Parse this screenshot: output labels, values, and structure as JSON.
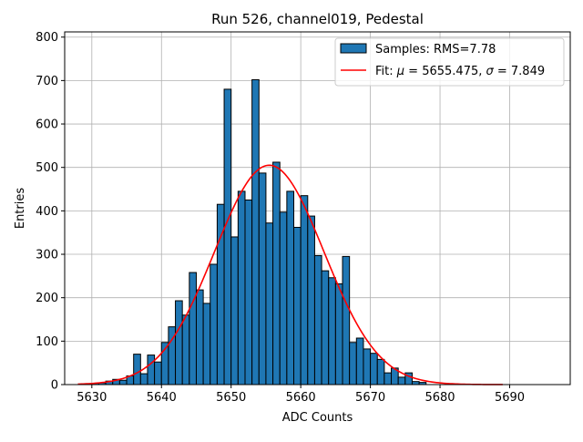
{
  "chart_data": {
    "type": "bar",
    "title": "Run 526, channel019, Pedestal",
    "xlabel": "ADC Counts",
    "ylabel": "Entries",
    "xlim": [
      5626.1,
      5698.7
    ],
    "ylim": [
      0,
      812
    ],
    "xticks": [
      5630,
      5640,
      5650,
      5660,
      5670,
      5680,
      5690
    ],
    "yticks": [
      0,
      100,
      200,
      300,
      400,
      500,
      600,
      700,
      800
    ],
    "grid": true,
    "legend_position": "top-right",
    "histogram": {
      "name": "Samples: RMS=7.78",
      "color": "#1f77b4",
      "bin_width": 1.0,
      "bin_edges_start": 5630,
      "values": [
        3,
        4,
        8,
        12,
        10,
        20,
        70,
        25,
        68,
        52,
        97,
        133,
        193,
        160,
        258,
        218,
        187,
        277,
        415,
        680,
        340,
        445,
        425,
        702,
        487,
        372,
        512,
        397,
        445,
        362,
        435,
        388,
        297,
        262,
        246,
        232,
        295,
        97,
        107,
        82,
        72,
        58,
        27,
        38,
        17,
        27,
        7,
        5
      ]
    },
    "fit": {
      "name": "Fit: μ = 5655.475, σ = 7.849",
      "color": "#ff0000",
      "mu": 5655.475,
      "sigma": 7.849,
      "amplitude": 505,
      "x_range": [
        5628,
        5689
      ]
    }
  },
  "legend": {
    "samples_label": "Samples: RMS=7.78",
    "fit_label_prefix": "Fit: ",
    "fit_mu_symbol": "μ",
    "fit_mu_value": " = 5655.475, ",
    "fit_sigma_symbol": "σ",
    "fit_sigma_value": " = 7.849"
  }
}
